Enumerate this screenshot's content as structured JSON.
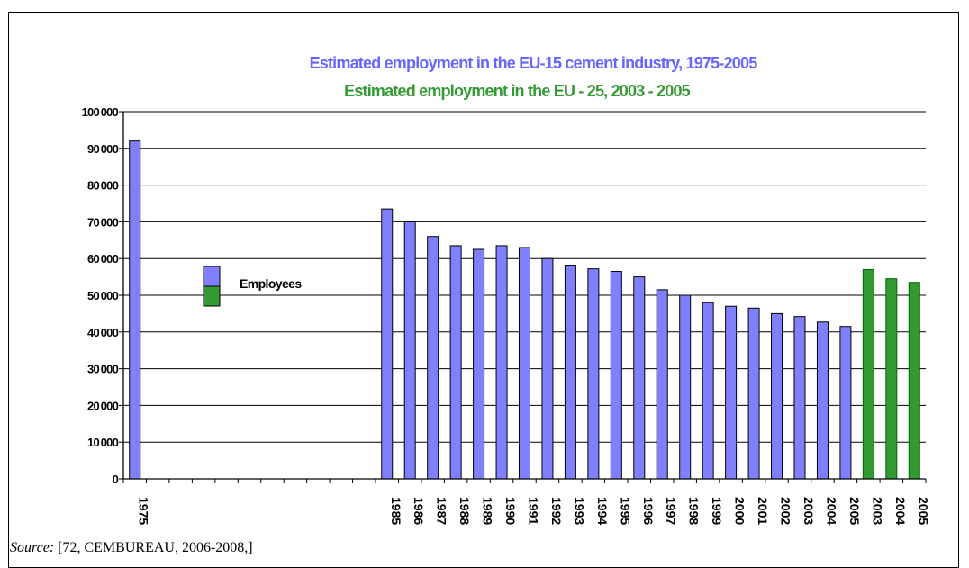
{
  "chart_data": {
    "type": "bar",
    "title": "Estimated employment in the EU-15 cement industry, 1975-2005",
    "subtitle": "Estimated employment in the EU - 25, 2003 - 2005",
    "ylim": [
      0,
      100000
    ],
    "yticks": [
      "0",
      "10000",
      "20000",
      "30000",
      "40000",
      "50000",
      "60000",
      "70000",
      "80000",
      "90000",
      "100000"
    ],
    "ytick_values": [
      0,
      10000,
      20000,
      30000,
      40000,
      50000,
      60000,
      70000,
      80000,
      90000,
      100000
    ],
    "grid": true,
    "legend": {
      "position": "left",
      "entries": [
        {
          "name": "Employees"
        }
      ]
    },
    "colors": {
      "eu15": "#8080ff",
      "eu25": "#339933",
      "eu25_edge": "#006600"
    },
    "categories": [
      "1975",
      "",
      "",
      "",
      "",
      "",
      "",
      "",
      "",
      "",
      "",
      "1985",
      "1986",
      "1987",
      "1988",
      "1989",
      "1990",
      "1991",
      "1992",
      "1993",
      "1994",
      "1995",
      "1996",
      "1997",
      "1998",
      "1999",
      "2000",
      "2001",
      "2002",
      "2003",
      "2004",
      "2005",
      "2003",
      "2004",
      "2005"
    ],
    "series": [
      {
        "name": "Employees",
        "group": "EU-15",
        "values": [
          92000,
          null,
          null,
          null,
          null,
          null,
          null,
          null,
          null,
          null,
          null,
          73500,
          70000,
          66000,
          63500,
          62500,
          63500,
          63000,
          60000,
          58200,
          57200,
          56500,
          55000,
          51500,
          50000,
          48000,
          47000,
          46500,
          45000,
          44200,
          42700,
          41500,
          null,
          null,
          null
        ]
      },
      {
        "name": "Employees",
        "group": "EU-25",
        "values": [
          null,
          null,
          null,
          null,
          null,
          null,
          null,
          null,
          null,
          null,
          null,
          null,
          null,
          null,
          null,
          null,
          null,
          null,
          null,
          null,
          null,
          null,
          null,
          null,
          null,
          null,
          null,
          null,
          null,
          null,
          null,
          null,
          57000,
          54500,
          53500
        ]
      }
    ]
  },
  "source": {
    "label": "Source:",
    "text": " [72, CEMBUREAU, 2006-2008,]"
  }
}
